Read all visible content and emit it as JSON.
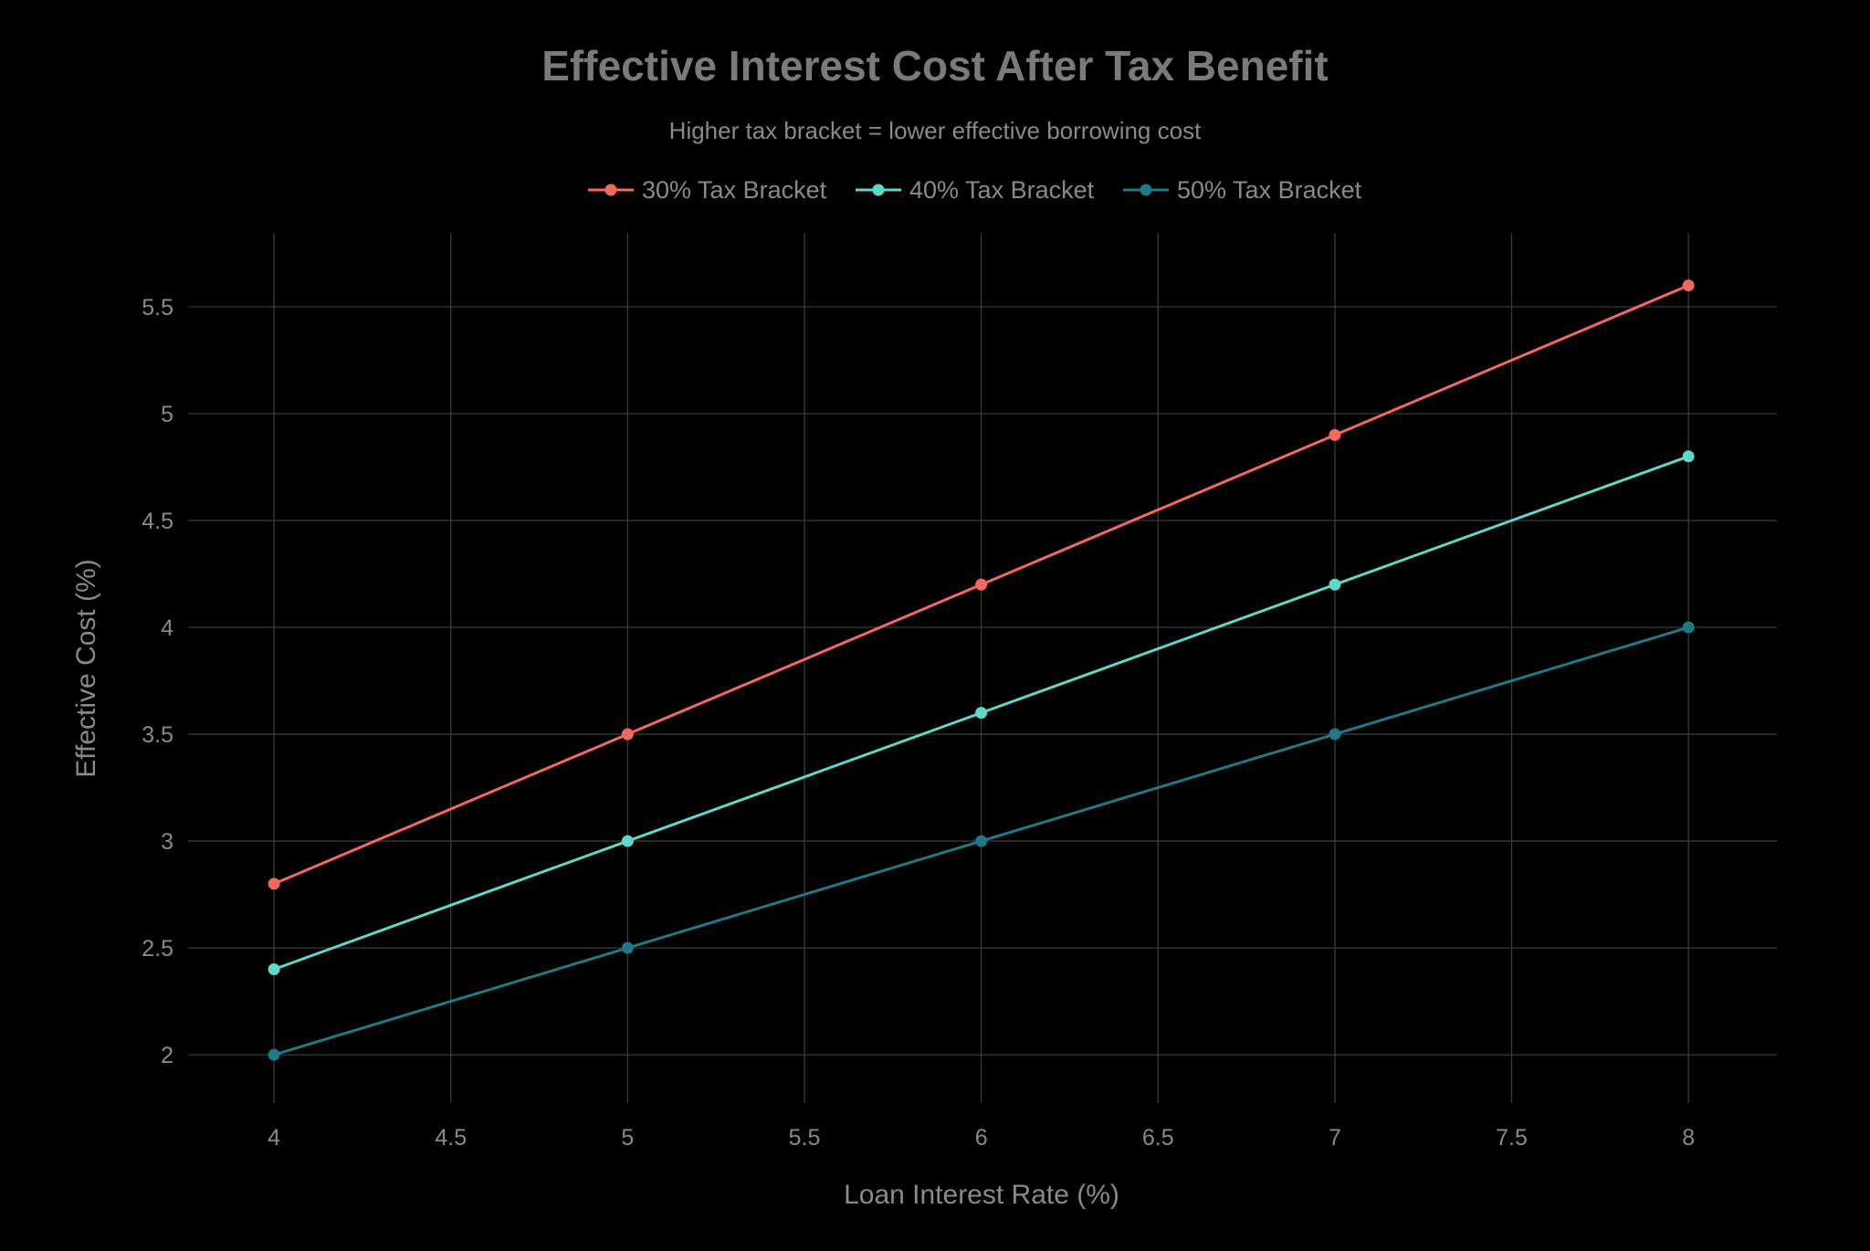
{
  "chart_data": {
    "type": "line",
    "title": "Effective Interest Cost After Tax Benefit",
    "subtitle": "Higher tax bracket = lower effective borrowing cost",
    "xlabel": "Loan Interest Rate (%)",
    "ylabel": "Effective Cost (%)",
    "x": [
      4,
      5,
      6,
      7,
      8
    ],
    "xlim": [
      3.757,
      8.25
    ],
    "ylim": [
      1.774,
      5.846
    ],
    "xticks": [
      "4",
      "4.5",
      "5",
      "5.5",
      "6",
      "6.5",
      "7",
      "7.5",
      "8"
    ],
    "xtick_values": [
      4,
      4.5,
      5,
      5.5,
      6,
      6.5,
      7,
      7.5,
      8
    ],
    "yticks": [
      "2",
      "2.5",
      "3",
      "3.5",
      "4",
      "4.5",
      "5",
      "5.5"
    ],
    "ytick_values": [
      2,
      2.5,
      3,
      3.5,
      4,
      4.5,
      5,
      5.5
    ],
    "grid": true,
    "legend_position": "top-center",
    "series": [
      {
        "name": "30% Tax Bracket",
        "color": "#F4695E",
        "values": [
          2.8,
          3.5,
          4.2,
          4.9,
          5.6
        ]
      },
      {
        "name": "40% Tax Bracket",
        "color": "#5FD8C8",
        "values": [
          2.4,
          3.0,
          3.6,
          4.2,
          4.8
        ]
      },
      {
        "name": "50% Tax Bracket",
        "color": "#1F7A86",
        "values": [
          2.0,
          2.5,
          3.0,
          3.5,
          4.0
        ]
      }
    ]
  }
}
